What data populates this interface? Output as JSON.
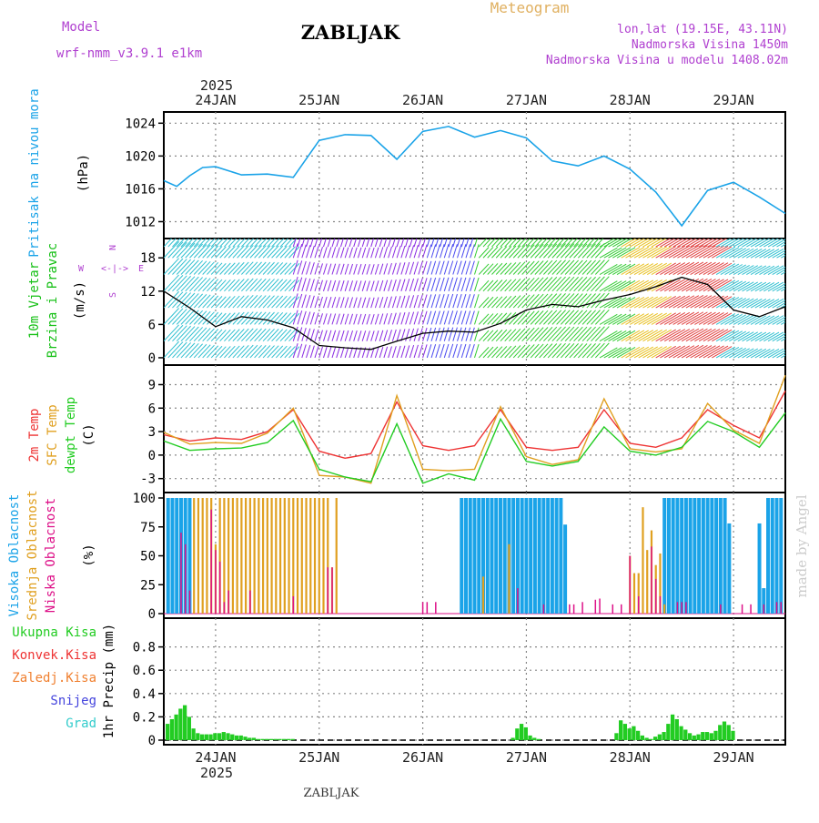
{
  "header": {
    "model_label": "Model",
    "model_name": "wrf-nmm_v3.9.1  e1km",
    "station": "ZABLJAK",
    "meteogram": "Meteogram",
    "lonlat": "lon,lat (19.15E, 43.11N)",
    "altitude": "Nadmorska Visina 1450m",
    "model_altitude": "Nadmorska Visina u modelu 1408.02m",
    "footer_station": "ZABLJAK",
    "credit": "made by Angel",
    "year": "2025"
  },
  "colors": {
    "pressure": "#1aa3e8",
    "wind_title": "#16c016",
    "temp2m": "#ee3333",
    "sfc": "#e0a020",
    "dewpt": "#22cc22",
    "high_cloud": "#1aa3e8",
    "mid_cloud": "#e0a020",
    "low_cloud": "#dd1188",
    "precip": "#22cc22",
    "purple": "#b040d0",
    "credit": "#cccccc"
  },
  "chart_data": [
    {
      "type": "line",
      "title": "Pritisak na nivou mora",
      "ylabel": "(hPa)",
      "ylim": [
        1010.5,
        1024.7
      ],
      "yticks": [
        "1012",
        "1016",
        "1020",
        "1024"
      ],
      "xlim": [
        0,
        144
      ],
      "dates": [
        "24JAN",
        "25JAN",
        "26JAN",
        "27JAN",
        "28JAN",
        "29JAN"
      ],
      "series": [
        {
          "name": "Pritisak na nivou mora",
          "x": [
            0,
            3,
            6,
            9,
            12,
            18,
            24,
            30,
            36,
            42,
            48,
            54,
            60,
            66,
            72,
            78,
            84,
            90,
            96,
            102,
            108,
            114,
            120,
            126,
            132,
            138,
            144
          ],
          "values": [
            1017,
            1016.3,
            1017.6,
            1018.6,
            1018.7,
            1017.7,
            1017.8,
            1017.4,
            1021.9,
            1022.6,
            1022.5,
            1019.6,
            1023.0,
            1023.6,
            1022.3,
            1023.1,
            1022.2,
            1019.4,
            1018.8,
            1020.0,
            1018.4,
            1015.6,
            1011.5,
            1015.8,
            1016.8,
            1015.0,
            1013.0
          ]
        }
      ]
    },
    {
      "type": "line",
      "title": "10m Vjetar Brzina i Pravac",
      "ylabel": "(m/s)",
      "ylim": [
        -0.5,
        20.5
      ],
      "yticks": [
        "0",
        "6",
        "12",
        "18"
      ],
      "compass": [
        "N",
        "E",
        "S",
        "W"
      ],
      "series": [
        {
          "name": "10m Vjetar",
          "x": [
            0,
            6,
            12,
            18,
            24,
            30,
            36,
            42,
            48,
            54,
            60,
            66,
            72,
            78,
            84,
            90,
            96,
            102,
            108,
            114,
            120,
            126,
            132,
            138,
            144
          ],
          "values": [
            12,
            9,
            5.6,
            7.4,
            6.8,
            5.4,
            2.2,
            1.8,
            1.5,
            3,
            4.4,
            4.8,
            4.6,
            6.2,
            8.6,
            9.6,
            9.2,
            10.4,
            11.4,
            12.8,
            14.5,
            13.2,
            8.6,
            7.4,
            9.2
          ]
        }
      ]
    },
    {
      "type": "line",
      "title": "2m Temp / SFC Temp / dewpt Temp",
      "ylabel": "(C)",
      "ylim": [
        -4.2,
        10.8
      ],
      "yticks": [
        "-3",
        "0",
        "3",
        "6",
        "9"
      ],
      "series": [
        {
          "name": "2m Temp",
          "x": [
            0,
            6,
            12,
            18,
            24,
            30,
            36,
            42,
            48,
            54,
            60,
            66,
            72,
            78,
            84,
            90,
            96,
            102,
            108,
            114,
            120,
            126,
            132,
            138,
            144
          ],
          "values": [
            2.6,
            1.8,
            2.2,
            2.0,
            3.0,
            5.8,
            0.5,
            -0.4,
            0.2,
            6.8,
            1.2,
            0.6,
            1.2,
            5.8,
            1.0,
            0.6,
            1.0,
            5.8,
            1.5,
            1.0,
            2.2,
            5.8,
            3.8,
            2.2,
            8.2
          ]
        },
        {
          "name": "SFC Temp",
          "x": [
            0,
            6,
            12,
            18,
            24,
            30,
            36,
            42,
            48,
            54,
            60,
            66,
            72,
            78,
            84,
            90,
            96,
            102,
            108,
            114,
            120,
            126,
            132,
            138,
            144
          ],
          "values": [
            2.9,
            1.4,
            1.6,
            1.5,
            2.8,
            6.0,
            -2.6,
            -2.8,
            -3.6,
            7.6,
            -1.8,
            -2.0,
            -1.8,
            6.2,
            -0.2,
            -1.2,
            -0.6,
            7.2,
            0.8,
            0.4,
            0.8,
            6.6,
            3.2,
            1.5,
            10.2
          ]
        },
        {
          "name": "dewpt Temp",
          "x": [
            0,
            6,
            12,
            18,
            24,
            30,
            36,
            42,
            48,
            54,
            60,
            66,
            72,
            78,
            84,
            90,
            96,
            102,
            108,
            114,
            120,
            126,
            132,
            138,
            144
          ],
          "values": [
            1.8,
            0.6,
            0.8,
            0.9,
            1.6,
            4.4,
            -1.8,
            -2.8,
            -3.4,
            4.0,
            -3.6,
            -2.4,
            -3.2,
            4.6,
            -0.8,
            -1.4,
            -0.8,
            3.6,
            0.5,
            0.0,
            1.0,
            4.3,
            3.0,
            1.0,
            5.4
          ]
        }
      ]
    },
    {
      "type": "bar",
      "title": "Visoka / Srednja / Niska Oblacnost",
      "ylabel": "(%)",
      "ylim": [
        0,
        100
      ],
      "yticks": [
        "0",
        "25",
        "50",
        "75",
        "100"
      ],
      "series": [
        {
          "name": "Visoka Oblacnost",
          "x": [
            1,
            2,
            3,
            4,
            5,
            6,
            69,
            70,
            71,
            72,
            73,
            74,
            75,
            76,
            77,
            78,
            79,
            80,
            81,
            82,
            83,
            84,
            85,
            86,
            87,
            88,
            89,
            90,
            91,
            92,
            93,
            116,
            117,
            118,
            119,
            120,
            121,
            122,
            123,
            124,
            125,
            126,
            127,
            128,
            129,
            130,
            131,
            138,
            139,
            140,
            141,
            142,
            143
          ],
          "values": [
            100,
            100,
            100,
            100,
            100,
            100,
            100,
            100,
            100,
            100,
            100,
            100,
            100,
            100,
            100,
            100,
            100,
            100,
            100,
            100,
            100,
            100,
            100,
            100,
            100,
            100,
            100,
            100,
            100,
            100,
            77,
            100,
            100,
            100,
            100,
            100,
            100,
            100,
            100,
            100,
            100,
            100,
            100,
            100,
            100,
            100,
            78,
            78,
            22,
            100,
            100,
            100,
            100
          ]
        },
        {
          "name": "Srednja Oblacnost",
          "x": [
            7,
            8,
            9,
            10,
            11,
            12,
            13,
            14,
            15,
            16,
            17,
            18,
            19,
            20,
            21,
            22,
            23,
            24,
            25,
            26,
            27,
            28,
            29,
            30,
            31,
            32,
            33,
            34,
            35,
            36,
            37,
            38,
            39,
            40,
            74,
            80,
            108,
            109,
            110,
            111,
            112,
            113,
            114,
            115,
            116
          ],
          "values": [
            100,
            100,
            100,
            100,
            100,
            60,
            100,
            100,
            100,
            100,
            100,
            100,
            100,
            100,
            100,
            100,
            100,
            100,
            100,
            100,
            100,
            100,
            100,
            100,
            100,
            100,
            100,
            100,
            100,
            100,
            100,
            100,
            40,
            100,
            32,
            60,
            50,
            35,
            35,
            92,
            55,
            72,
            42,
            52,
            8
          ]
        },
        {
          "name": "Niska Oblacnost",
          "x": [
            4,
            5,
            6,
            11,
            12,
            13,
            14,
            15,
            20,
            30,
            38,
            39,
            60,
            61,
            63,
            82,
            88,
            94,
            95,
            97,
            100,
            101,
            104,
            106,
            108,
            110,
            113,
            114,
            115,
            119,
            120,
            121,
            129,
            134,
            136,
            139,
            142,
            143
          ],
          "values": [
            70,
            60,
            20,
            90,
            55,
            45,
            10,
            20,
            20,
            15,
            40,
            40,
            10,
            10,
            10,
            22,
            8,
            8,
            8,
            10,
            12,
            13,
            8,
            8,
            50,
            15,
            58,
            30,
            15,
            10,
            10,
            10,
            8,
            8,
            8,
            8,
            10,
            10
          ]
        }
      ]
    },
    {
      "type": "bar",
      "title": "1hr Precip (mm)",
      "ylabel": "1hr Precip (mm)",
      "ylim": [
        0,
        1.0
      ],
      "yticks": [
        "0",
        "0.2",
        "0.4",
        "0.6",
        "0.8"
      ],
      "legend": [
        "Ukupna Kisa",
        "Konvek.Kisa",
        "Zaledj.Kisa",
        "Snijeg",
        "Grad"
      ],
      "series": [
        {
          "name": "Ukupna Kisa",
          "x": [
            0,
            1,
            2,
            3,
            4,
            5,
            6,
            7,
            8,
            9,
            10,
            11,
            12,
            13,
            14,
            15,
            16,
            17,
            18,
            19,
            20,
            21,
            22,
            23,
            24,
            25,
            26,
            27,
            28,
            29,
            80,
            81,
            82,
            83,
            84,
            85,
            86,
            104,
            105,
            106,
            107,
            108,
            109,
            110,
            111,
            112,
            113,
            114,
            115,
            116,
            117,
            118,
            119,
            120,
            121,
            122,
            123,
            124,
            125,
            126,
            127,
            128,
            129,
            130,
            131
          ],
          "values": [
            0.14,
            0.18,
            0.22,
            0.27,
            0.3,
            0.2,
            0.1,
            0.06,
            0.05,
            0.05,
            0.05,
            0.06,
            0.06,
            0.07,
            0.06,
            0.05,
            0.04,
            0.04,
            0.03,
            0.02,
            0.02,
            0.01,
            0.01,
            0.01,
            0.01,
            0.01,
            0.01,
            0.01,
            0.01,
            0.01,
            0.02,
            0.1,
            0.14,
            0.11,
            0.04,
            0.02,
            0.01,
            0.06,
            0.17,
            0.14,
            0.1,
            0.12,
            0.08,
            0.04,
            0.02,
            0.01,
            0.03,
            0.05,
            0.07,
            0.14,
            0.22,
            0.18,
            0.12,
            0.09,
            0.06,
            0.04,
            0.05,
            0.07,
            0.07,
            0.06,
            0.08,
            0.13,
            0.16,
            0.13,
            0.08
          ]
        }
      ]
    }
  ]
}
